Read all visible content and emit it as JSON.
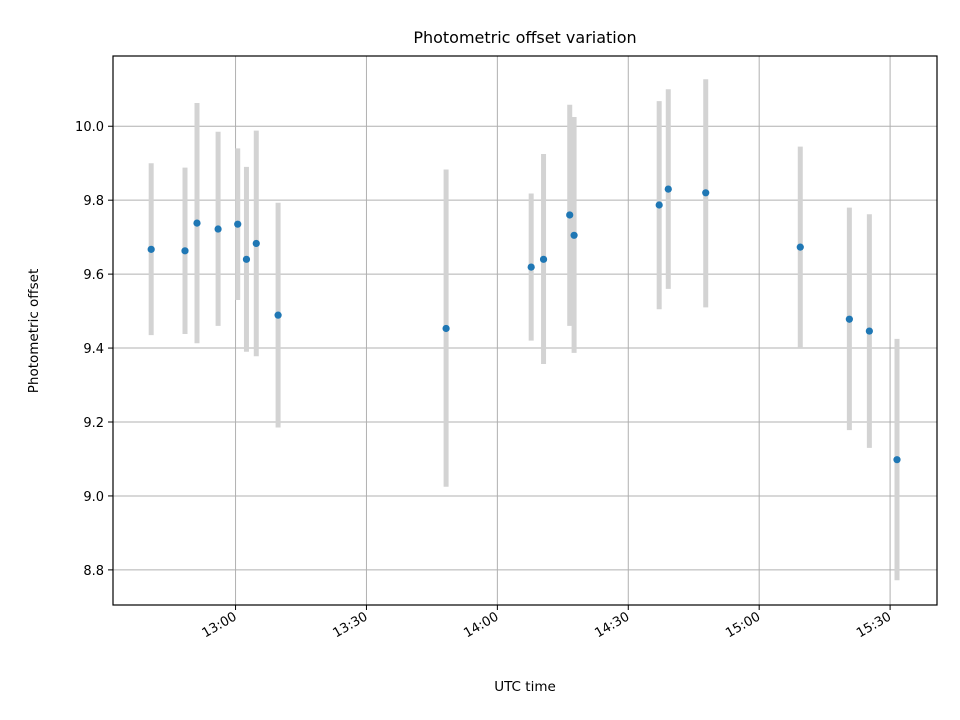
{
  "chart_data": {
    "type": "scatter",
    "title": "Photometric offset variation",
    "xlabel": "UTC time",
    "ylabel": "Photometric offset",
    "x_tick_labels": [
      "13:00",
      "13:30",
      "14:00",
      "14:30",
      "15:00",
      "15:30"
    ],
    "x_ticks": [
      "13:00",
      "13:30",
      "14:00",
      "14:30",
      "15:00",
      "15:30"
    ],
    "xlim": [
      "12:31:55",
      "15:40:45"
    ],
    "y_tick_labels": [
      "8.8",
      "9.0",
      "9.2",
      "9.4",
      "9.6",
      "9.8",
      "10.0"
    ],
    "y_ticks": [
      8.8,
      9.0,
      9.2,
      9.4,
      9.6,
      9.8,
      10.0
    ],
    "ylim": [
      8.705,
      10.19
    ],
    "grid": true,
    "colors": {
      "point": "#1f77b4",
      "errorbar": "#d3d3d3",
      "grid": "#b0b0b0"
    },
    "points": [
      {
        "x": "12:40:40",
        "y": 9.667,
        "yerr_low": 9.435,
        "yerr_high": 9.9
      },
      {
        "x": "12:48:25",
        "y": 9.663,
        "yerr_low": 9.438,
        "yerr_high": 9.888
      },
      {
        "x": "12:51:10",
        "y": 9.738,
        "yerr_low": 9.413,
        "yerr_high": 10.063
      },
      {
        "x": "12:56:00",
        "y": 9.722,
        "yerr_low": 9.46,
        "yerr_high": 9.985
      },
      {
        "x": "13:00:30",
        "y": 9.735,
        "yerr_low": 9.53,
        "yerr_high": 9.94
      },
      {
        "x": "13:02:30",
        "y": 9.64,
        "yerr_low": 9.39,
        "yerr_high": 9.89
      },
      {
        "x": "13:04:45",
        "y": 9.683,
        "yerr_low": 9.378,
        "yerr_high": 9.988
      },
      {
        "x": "13:09:45",
        "y": 9.489,
        "yerr_low": 9.185,
        "yerr_high": 9.793
      },
      {
        "x": "13:48:15",
        "y": 9.453,
        "yerr_low": 9.025,
        "yerr_high": 9.883
      },
      {
        "x": "14:07:45",
        "y": 9.619,
        "yerr_low": 9.42,
        "yerr_high": 9.818
      },
      {
        "x": "14:10:35",
        "y": 9.64,
        "yerr_low": 9.357,
        "yerr_high": 9.925
      },
      {
        "x": "14:16:35",
        "y": 9.76,
        "yerr_low": 9.46,
        "yerr_high": 10.058
      },
      {
        "x": "14:17:35",
        "y": 9.705,
        "yerr_low": 9.387,
        "yerr_high": 10.025
      },
      {
        "x": "14:37:05",
        "y": 9.787,
        "yerr_low": 9.505,
        "yerr_high": 10.068
      },
      {
        "x": "14:39:10",
        "y": 9.83,
        "yerr_low": 9.56,
        "yerr_high": 10.1
      },
      {
        "x": "14:47:45",
        "y": 9.82,
        "yerr_low": 9.51,
        "yerr_high": 10.127
      },
      {
        "x": "15:09:25",
        "y": 9.673,
        "yerr_low": 9.4,
        "yerr_high": 9.945
      },
      {
        "x": "15:20:40",
        "y": 9.478,
        "yerr_low": 9.178,
        "yerr_high": 9.78
      },
      {
        "x": "15:25:15",
        "y": 9.446,
        "yerr_low": 9.13,
        "yerr_high": 9.762
      },
      {
        "x": "15:31:35",
        "y": 9.098,
        "yerr_low": 8.772,
        "yerr_high": 9.425
      }
    ]
  }
}
